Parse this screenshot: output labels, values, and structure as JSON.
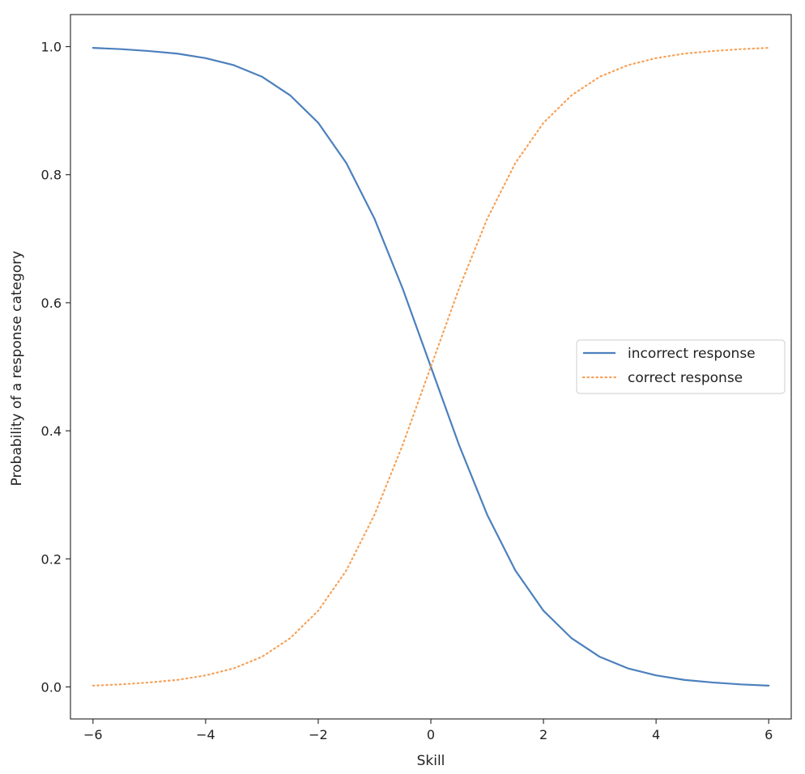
{
  "chart_data": {
    "type": "line",
    "title": "",
    "xlabel": "Skill",
    "ylabel": "Probability of a response category",
    "xlim": [
      -6.4,
      6.4
    ],
    "ylim": [
      -0.05,
      1.05
    ],
    "xticks": [
      -6,
      -4,
      -2,
      0,
      2,
      4,
      6
    ],
    "xtick_labels": [
      "−6",
      "−4",
      "−2",
      "0",
      "2",
      "4",
      "6"
    ],
    "yticks": [
      0.0,
      0.2,
      0.4,
      0.6,
      0.8,
      1.0
    ],
    "ytick_labels": [
      "0.0",
      "0.2",
      "0.4",
      "0.6",
      "0.8",
      "1.0"
    ],
    "grid": false,
    "legend_position": "center-right",
    "x": [
      -6,
      -5.5,
      -5,
      -4.5,
      -4,
      -3.5,
      -3,
      -2.5,
      -2,
      -1.5,
      -1,
      -0.5,
      0,
      0.5,
      1,
      1.5,
      2,
      2.5,
      3,
      3.5,
      4,
      4.5,
      5,
      5.5,
      6
    ],
    "series": [
      {
        "name": "incorrect response",
        "style": "solid",
        "color": "#4c80bd",
        "values": [
          0.998,
          0.996,
          0.993,
          0.989,
          0.982,
          0.971,
          0.953,
          0.924,
          0.881,
          0.818,
          0.731,
          0.622,
          0.5,
          0.378,
          0.269,
          0.182,
          0.119,
          0.076,
          0.047,
          0.029,
          0.018,
          0.011,
          0.007,
          0.004,
          0.002
        ]
      },
      {
        "name": "correct response",
        "style": "dotted",
        "color": "#f5a25a",
        "values": [
          0.002,
          0.004,
          0.007,
          0.011,
          0.018,
          0.029,
          0.047,
          0.076,
          0.119,
          0.182,
          0.269,
          0.378,
          0.5,
          0.622,
          0.731,
          0.818,
          0.881,
          0.924,
          0.953,
          0.971,
          0.982,
          0.989,
          0.993,
          0.996,
          0.998
        ]
      }
    ]
  }
}
